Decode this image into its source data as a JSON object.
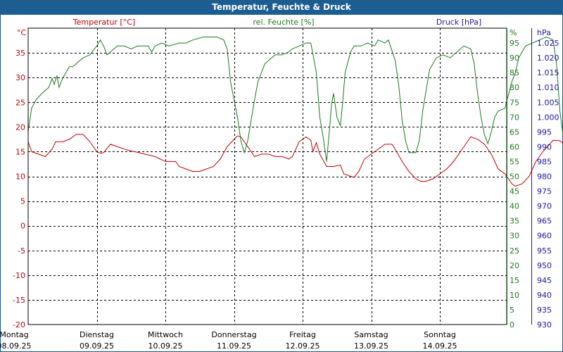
{
  "title": "Temperatur, Feuchte & Druck",
  "colors": {
    "temperature": "#c00000",
    "humidity": "#1a7a1a",
    "pressure": "#1a1a9a",
    "titlebar": "#1d5e92",
    "grid": "#000000"
  },
  "chart_data": {
    "type": "line",
    "grid": true,
    "legend": "top",
    "axes": {
      "temperature": {
        "label": "Temperatur [°C]",
        "unit": "°C",
        "range": [
          -20,
          40
        ],
        "ticks": [
          35,
          30,
          25,
          20,
          15,
          10,
          5,
          0,
          -5,
          -10,
          -15,
          -20
        ]
      },
      "humidity": {
        "label": "rel. Feuchte [%]",
        "unit": "%",
        "range": [
          0,
          100
        ],
        "ticks": [
          95,
          90,
          85,
          80,
          75,
          70,
          65,
          60,
          55,
          50,
          45,
          40,
          35,
          30,
          25,
          20,
          15,
          10,
          5,
          0
        ]
      },
      "pressure": {
        "label": "Druck [hPa]",
        "unit": "hPa",
        "range": [
          930,
          1030
        ],
        "ticks": [
          "1.025",
          "1.020",
          "1.015",
          "1.010",
          "1.005",
          "1.000",
          "995",
          "990",
          "985",
          "980",
          "975",
          "970",
          "965",
          "960",
          "955",
          "950",
          "945",
          "940",
          "935",
          "930"
        ]
      }
    },
    "x_ticks": [
      {
        "day": "Montag",
        "date": "08.09.25"
      },
      {
        "day": "Dienstag",
        "date": "09.09.25"
      },
      {
        "day": "Mittwoch",
        "date": "10.09.25"
      },
      {
        "day": "Donnerstag",
        "date": "11.09.25"
      },
      {
        "day": "Freitag",
        "date": "12.09.25"
      },
      {
        "day": "Samstag",
        "date": "13.09.25"
      },
      {
        "day": "Sonntag",
        "date": "14.09.25"
      }
    ],
    "x_range_days": [
      0,
      7
    ],
    "series": [
      {
        "name": "Temperatur [°C]",
        "axis": "temperature",
        "points": [
          [
            0,
            17
          ],
          [
            0.05,
            15
          ],
          [
            0.15,
            14.5
          ],
          [
            0.25,
            14
          ],
          [
            0.35,
            15.5
          ],
          [
            0.4,
            17
          ],
          [
            0.5,
            17
          ],
          [
            0.6,
            17.5
          ],
          [
            0.7,
            18.5
          ],
          [
            0.8,
            18.5
          ],
          [
            0.9,
            17
          ],
          [
            1.0,
            15
          ],
          [
            1.05,
            14.7
          ],
          [
            1.1,
            14.8
          ],
          [
            1.2,
            16.5
          ],
          [
            1.3,
            16
          ],
          [
            1.45,
            15.3
          ],
          [
            1.55,
            15
          ],
          [
            1.7,
            14.5
          ],
          [
            1.85,
            14
          ],
          [
            2.0,
            13
          ],
          [
            2.15,
            13
          ],
          [
            2.2,
            12
          ],
          [
            2.3,
            11.5
          ],
          [
            2.4,
            11
          ],
          [
            2.5,
            11
          ],
          [
            2.6,
            11.5
          ],
          [
            2.7,
            12
          ],
          [
            2.8,
            13.5
          ],
          [
            2.9,
            16
          ],
          [
            3.0,
            17.5
          ],
          [
            3.05,
            18.2
          ],
          [
            3.1,
            18
          ],
          [
            3.2,
            16
          ],
          [
            3.3,
            14
          ],
          [
            3.4,
            14.5
          ],
          [
            3.5,
            14.5
          ],
          [
            3.6,
            14
          ],
          [
            3.7,
            14
          ],
          [
            3.8,
            13.5
          ],
          [
            3.85,
            14
          ],
          [
            3.95,
            17
          ],
          [
            4.05,
            18
          ],
          [
            4.12,
            17.3
          ],
          [
            4.15,
            15
          ],
          [
            4.2,
            16.8
          ],
          [
            4.25,
            14.5
          ],
          [
            4.35,
            12
          ],
          [
            4.45,
            12
          ],
          [
            4.55,
            12.3
          ],
          [
            4.6,
            10.5
          ],
          [
            4.7,
            10
          ],
          [
            4.75,
            9.8
          ],
          [
            4.82,
            11
          ],
          [
            4.9,
            13.5
          ],
          [
            5.0,
            14.5
          ],
          [
            5.1,
            15.5
          ],
          [
            5.2,
            16.5
          ],
          [
            5.3,
            16.5
          ],
          [
            5.35,
            15.5
          ],
          [
            5.45,
            13
          ],
          [
            5.55,
            11
          ],
          [
            5.65,
            9.5
          ],
          [
            5.72,
            9
          ],
          [
            5.8,
            9
          ],
          [
            5.9,
            9.5
          ],
          [
            6.0,
            10.5
          ],
          [
            6.1,
            11.5
          ],
          [
            6.2,
            13
          ],
          [
            6.3,
            15
          ],
          [
            6.4,
            17
          ],
          [
            6.45,
            18
          ],
          [
            6.55,
            17.5
          ],
          [
            6.65,
            16.5
          ],
          [
            6.75,
            14.5
          ],
          [
            6.85,
            11.5
          ],
          [
            6.95,
            10.5
          ],
          [
            7.05,
            8.5
          ],
          [
            7.1,
            8
          ],
          [
            7.2,
            8.5
          ],
          [
            7.3,
            10
          ],
          [
            7.4,
            13
          ],
          [
            7.5,
            15
          ],
          [
            7.6,
            16.5
          ],
          [
            7.65,
            17.3
          ],
          [
            7.75,
            17.2
          ],
          [
            7.85,
            16
          ],
          [
            7.95,
            15
          ],
          [
            8.0,
            14
          ],
          [
            8.08,
            14.5
          ]
        ]
      },
      {
        "name": "rel. Feuchte [%]",
        "axis": "humidity",
        "points": [
          [
            0,
            65
          ],
          [
            0.05,
            73
          ],
          [
            0.12,
            76
          ],
          [
            0.2,
            78
          ],
          [
            0.3,
            80
          ],
          [
            0.35,
            83
          ],
          [
            0.38,
            81
          ],
          [
            0.42,
            84
          ],
          [
            0.45,
            80
          ],
          [
            0.5,
            83
          ],
          [
            0.6,
            87
          ],
          [
            0.65,
            87
          ],
          [
            0.7,
            88
          ],
          [
            0.8,
            90
          ],
          [
            0.9,
            91
          ],
          [
            1.0,
            94
          ],
          [
            1.05,
            96
          ],
          [
            1.1,
            94
          ],
          [
            1.15,
            91
          ],
          [
            1.2,
            92
          ],
          [
            1.3,
            94
          ],
          [
            1.4,
            94
          ],
          [
            1.5,
            93
          ],
          [
            1.6,
            94
          ],
          [
            1.75,
            94
          ],
          [
            1.8,
            92
          ],
          [
            1.85,
            94
          ],
          [
            1.95,
            95
          ],
          [
            2.05,
            94
          ],
          [
            2.2,
            95
          ],
          [
            2.3,
            95
          ],
          [
            2.4,
            96
          ],
          [
            2.55,
            97
          ],
          [
            2.75,
            97
          ],
          [
            2.85,
            96
          ],
          [
            2.9,
            93
          ],
          [
            2.95,
            82
          ],
          [
            3.05,
            70
          ],
          [
            3.1,
            62
          ],
          [
            3.15,
            58
          ],
          [
            3.2,
            62
          ],
          [
            3.3,
            76
          ],
          [
            3.35,
            82
          ],
          [
            3.45,
            88
          ],
          [
            3.55,
            90
          ],
          [
            3.6,
            91
          ],
          [
            3.7,
            91
          ],
          [
            3.8,
            92
          ],
          [
            3.85,
            93
          ],
          [
            3.95,
            94
          ],
          [
            4.05,
            95
          ],
          [
            4.12,
            95
          ],
          [
            4.2,
            85
          ],
          [
            4.25,
            70
          ],
          [
            4.3,
            63
          ],
          [
            4.35,
            55
          ],
          [
            4.4,
            68
          ],
          [
            4.42,
            74
          ],
          [
            4.45,
            78
          ],
          [
            4.5,
            70
          ],
          [
            4.55,
            67
          ],
          [
            4.58,
            74
          ],
          [
            4.62,
            85
          ],
          [
            4.7,
            92
          ],
          [
            4.75,
            94
          ],
          [
            4.85,
            94
          ],
          [
            4.95,
            95
          ],
          [
            5.05,
            94
          ],
          [
            5.1,
            96
          ],
          [
            5.2,
            95
          ],
          [
            5.25,
            96
          ],
          [
            5.35,
            89
          ],
          [
            5.4,
            81
          ],
          [
            5.45,
            69
          ],
          [
            5.5,
            62
          ],
          [
            5.55,
            58
          ],
          [
            5.65,
            58
          ],
          [
            5.7,
            62
          ],
          [
            5.75,
            72
          ],
          [
            5.85,
            86
          ],
          [
            5.95,
            90
          ],
          [
            6.05,
            91
          ],
          [
            6.15,
            90
          ],
          [
            6.25,
            92
          ],
          [
            6.35,
            94
          ],
          [
            6.45,
            93
          ],
          [
            6.5,
            88
          ],
          [
            6.55,
            78
          ],
          [
            6.6,
            70
          ],
          [
            6.65,
            64
          ],
          [
            6.7,
            61
          ],
          [
            6.75,
            65
          ],
          [
            6.8,
            70
          ],
          [
            6.85,
            72
          ],
          [
            6.95,
            73
          ],
          [
            7.05,
            82
          ],
          [
            7.1,
            85
          ],
          [
            7.15,
            90
          ],
          [
            7.25,
            94
          ],
          [
            7.35,
            95
          ],
          [
            7.45,
            96
          ],
          [
            7.55,
            97
          ],
          [
            7.65,
            96
          ],
          [
            7.7,
            88
          ],
          [
            7.75,
            72
          ],
          [
            7.8,
            63
          ],
          [
            7.85,
            60
          ],
          [
            7.95,
            58
          ],
          [
            8.0,
            55
          ],
          [
            8.05,
            58
          ],
          [
            8.15,
            63
          ],
          [
            8.2,
            72
          ],
          [
            8.25,
            80
          ],
          [
            8.3,
            86
          ],
          [
            8.35,
            90
          ],
          [
            8.4,
            92
          ]
        ]
      }
    ]
  }
}
